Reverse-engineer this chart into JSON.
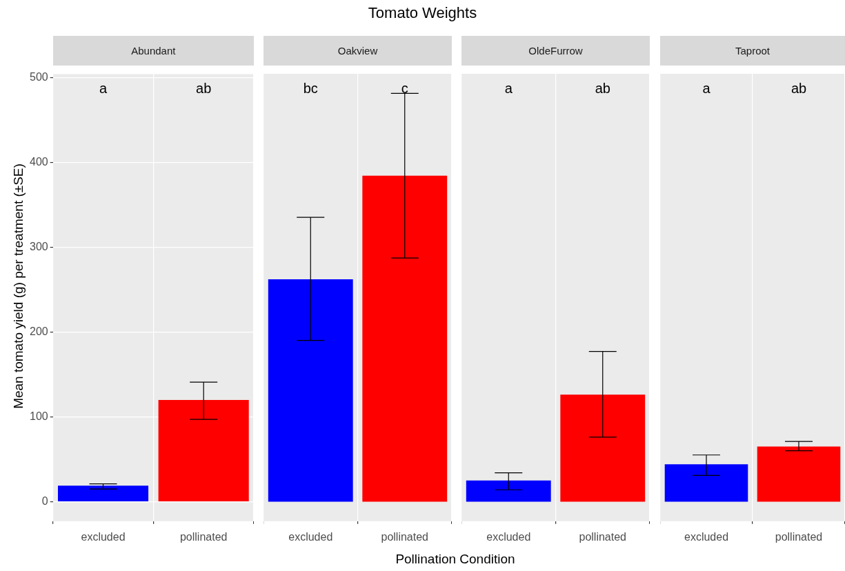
{
  "chart_data": [
    {
      "type": "bar",
      "subtitle": "Abundant",
      "ylabel": "Mean tomato yield (g) per treatment (±SE)",
      "categories": [
        "excluded",
        "pollinated"
      ],
      "values": [
        19,
        120
      ],
      "colors": [
        "#0000ff",
        "#ff0000"
      ],
      "errors": [
        [
          15,
          21
        ],
        [
          97,
          141
        ]
      ],
      "ylim": [
        -23,
        504
      ],
      "yticks": [
        0,
        100,
        200,
        300,
        400,
        500
      ],
      "grid": true,
      "annotations": [
        "a",
        "ab"
      ]
    },
    {
      "type": "bar",
      "title": "Tomato Weights",
      "subtitle": "Oakview",
      "categories": [
        "excluded",
        "pollinated"
      ],
      "values": [
        262,
        384
      ],
      "colors": [
        "#0000ff",
        "#ff0000"
      ],
      "errors": [
        [
          190,
          335
        ],
        [
          287,
          481
        ]
      ],
      "ylim": [
        -23,
        504
      ],
      "tick_labels": "x",
      "grid": true,
      "annotations": [
        "bc",
        "c"
      ]
    },
    {
      "type": "bar",
      "subtitle": "OldeFurrow",
      "xlabel": "Pollination Condition",
      "categories": [
        "excluded",
        "pollinated"
      ],
      "values": [
        25,
        126
      ],
      "colors": [
        "#0000ff",
        "#ff0000"
      ],
      "errors": [
        [
          14,
          34
        ],
        [
          76,
          177
        ]
      ],
      "ylim": [
        -23,
        504
      ],
      "tick_labels": "x",
      "grid": true,
      "annotations": [
        "a",
        "ab"
      ]
    },
    {
      "type": "bar",
      "subtitle": "Taproot",
      "categories": [
        "excluded",
        "pollinated"
      ],
      "values": [
        44,
        65
      ],
      "colors": [
        "#0000ff",
        "#ff0000"
      ],
      "errors": [
        [
          31,
          55
        ],
        [
          60,
          71
        ]
      ],
      "ylim": [
        -23,
        504
      ],
      "tick_labels": "x",
      "grid": true,
      "annotations": [
        "a",
        "ab"
      ]
    }
  ]
}
